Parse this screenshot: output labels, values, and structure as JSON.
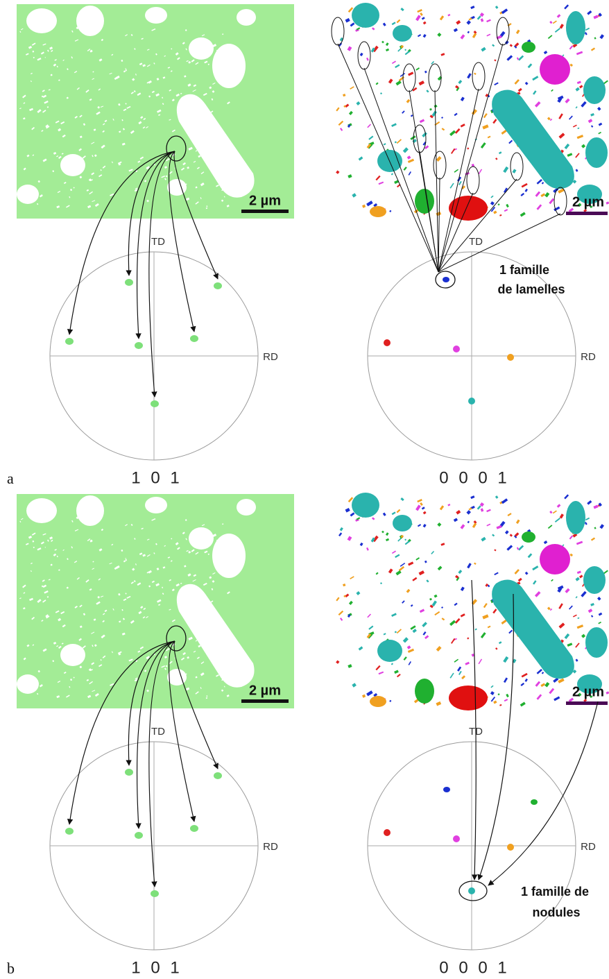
{
  "panels": [
    {
      "label": "a",
      "left": {
        "scale_bar": "2 µm",
        "td": "TD",
        "rd": "RD",
        "pole": "1 0 1"
      },
      "right": {
        "scale_bar": "2 µm",
        "td": "TD",
        "rd": "RD",
        "pole": "0 0 0 1",
        "annotation": [
          "1 famille",
          "de lamelles"
        ]
      }
    },
    {
      "label": "b",
      "left": {
        "scale_bar": "2 µm",
        "td": "TD",
        "rd": "RD",
        "pole": "1 0 1"
      },
      "right": {
        "scale_bar": "2 µm",
        "td": "TD",
        "rd": "RD",
        "pole": "0 0 0 1",
        "annotation": [
          "1 famille de",
          "nodules"
        ]
      }
    }
  ]
}
